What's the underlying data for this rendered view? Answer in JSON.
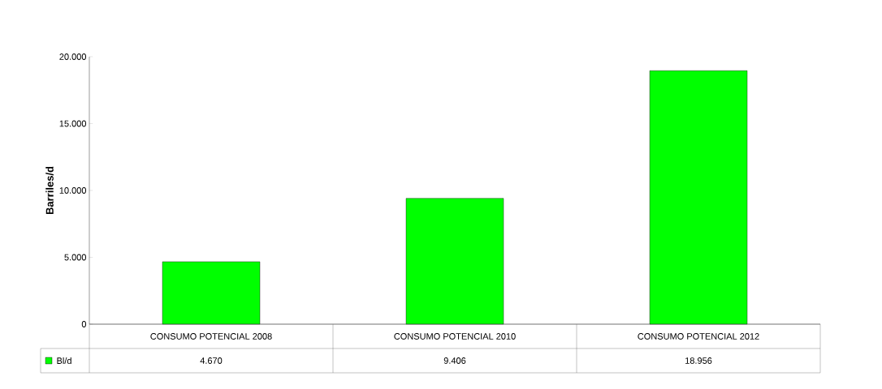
{
  "chart_data": {
    "type": "bar",
    "ylabel": "Barriles/d",
    "categories": [
      "CONSUMO POTENCIAL 2008",
      "CONSUMO POTENCIAL 2010",
      "CONSUMO POTENCIAL 2012"
    ],
    "series": [
      {
        "name": "Bl/d",
        "color": "#00ff00",
        "values": [
          4670,
          9406,
          18956
        ],
        "value_labels": [
          "4.670",
          "9.406",
          "18.956"
        ]
      }
    ],
    "ylim": [
      0,
      20000
    ],
    "yticks": [
      0,
      {
        "value": 5000,
        "label": "5.000"
      },
      {
        "value": 10000,
        "label": "10.000"
      },
      {
        "value": 15000,
        "label": "15.000"
      },
      {
        "value": 20000,
        "label": "20.000"
      }
    ],
    "legend": "bottom left"
  }
}
